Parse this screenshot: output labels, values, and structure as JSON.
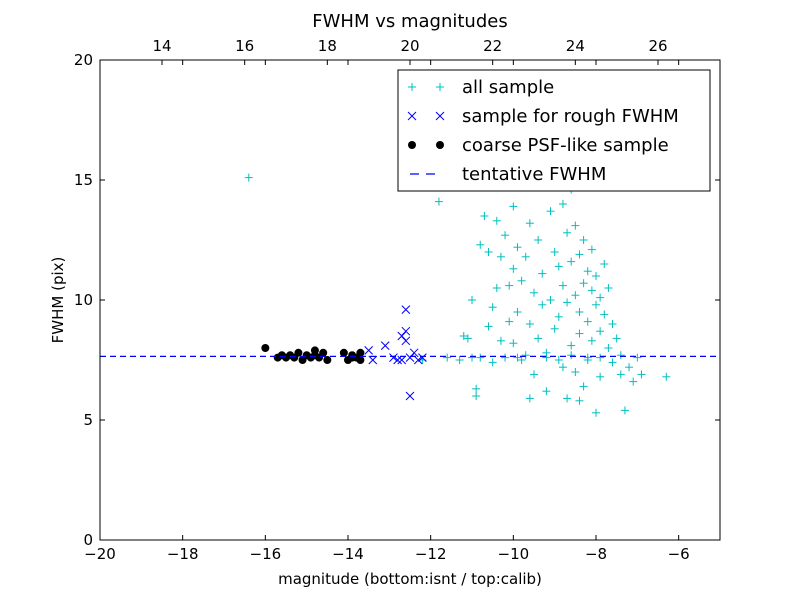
{
  "chart_data": {
    "type": "scatter",
    "title": "FWHM vs magnitudes",
    "xlabel": "magnitude (bottom:isnt / top:calib)",
    "ylabel": "FWHM (pix)",
    "xlim": [
      -20,
      -5
    ],
    "ylim": [
      0,
      20
    ],
    "x_ticks": [
      -20,
      -18,
      -16,
      -14,
      -12,
      -10,
      -8,
      -6
    ],
    "x_tick_labels": [
      "−20",
      "−18",
      "−16",
      "−14",
      "−12",
      "−10",
      "−8",
      "−6"
    ],
    "y_ticks": [
      0,
      5,
      10,
      15,
      20
    ],
    "y_tick_labels": [
      "0",
      "5",
      "10",
      "15",
      "20"
    ],
    "top_xlim": [
      12.5,
      27.5
    ],
    "top_x_ticks": [
      14,
      16,
      18,
      20,
      22,
      24,
      26
    ],
    "top_x_tick_labels": [
      "14",
      "16",
      "18",
      "20",
      "22",
      "24",
      "26"
    ],
    "grid": false,
    "legend_position": "top-right",
    "tentative_fwhm": 7.65,
    "series": [
      {
        "name": "all sample",
        "marker": "plus",
        "color": "#00bfbf",
        "points": [
          [
            -16.4,
            15.1
          ],
          [
            -12.2,
            7.5
          ],
          [
            -11.8,
            14.1
          ],
          [
            -11.6,
            7.6
          ],
          [
            -11.3,
            7.5
          ],
          [
            -11.2,
            8.5
          ],
          [
            -11.1,
            8.4
          ],
          [
            -11.0,
            10.0
          ],
          [
            -11.0,
            7.6
          ],
          [
            -10.9,
            6.3
          ],
          [
            -10.9,
            6.0
          ],
          [
            -10.8,
            12.3
          ],
          [
            -10.8,
            7.6
          ],
          [
            -10.7,
            13.5
          ],
          [
            -10.6,
            8.9
          ],
          [
            -10.6,
            12.0
          ],
          [
            -10.5,
            9.7
          ],
          [
            -10.5,
            7.4
          ],
          [
            -10.4,
            13.3
          ],
          [
            -10.4,
            10.5
          ],
          [
            -10.3,
            11.8
          ],
          [
            -10.3,
            8.3
          ],
          [
            -10.2,
            7.6
          ],
          [
            -10.2,
            12.7
          ],
          [
            -10.1,
            9.1
          ],
          [
            -10.1,
            10.6
          ],
          [
            -10.0,
            13.9
          ],
          [
            -10.0,
            11.3
          ],
          [
            -10.0,
            8.2
          ],
          [
            -9.9,
            12.2
          ],
          [
            -9.9,
            9.5
          ],
          [
            -9.8,
            7.5
          ],
          [
            -9.8,
            10.8
          ],
          [
            -9.7,
            11.8
          ],
          [
            -9.6,
            13.2
          ],
          [
            -9.6,
            9.0
          ],
          [
            -9.5,
            6.9
          ],
          [
            -9.5,
            10.3
          ],
          [
            -9.4,
            12.5
          ],
          [
            -9.4,
            8.4
          ],
          [
            -9.3,
            11.1
          ],
          [
            -9.3,
            9.8
          ],
          [
            -9.2,
            7.8
          ],
          [
            -9.2,
            6.2
          ],
          [
            -9.1,
            13.7
          ],
          [
            -9.1,
            10.0
          ],
          [
            -9.0,
            12.0
          ],
          [
            -9.0,
            8.8
          ],
          [
            -8.9,
            11.4
          ],
          [
            -8.9,
            9.3
          ],
          [
            -8.8,
            7.2
          ],
          [
            -8.8,
            10.6
          ],
          [
            -8.7,
            12.8
          ],
          [
            -8.7,
            9.9
          ],
          [
            -8.6,
            11.6
          ],
          [
            -8.6,
            8.1
          ],
          [
            -8.5,
            10.2
          ],
          [
            -8.5,
            13.1
          ],
          [
            -8.5,
            7.0
          ],
          [
            -8.4,
            9.5
          ],
          [
            -8.4,
            11.9
          ],
          [
            -8.4,
            8.6
          ],
          [
            -8.3,
            12.5
          ],
          [
            -8.3,
            10.7
          ],
          [
            -8.3,
            6.4
          ],
          [
            -8.2,
            11.2
          ],
          [
            -8.2,
            9.1
          ],
          [
            -8.2,
            7.6
          ],
          [
            -8.1,
            10.4
          ],
          [
            -8.1,
            12.1
          ],
          [
            -8.1,
            8.3
          ],
          [
            -8.0,
            9.8
          ],
          [
            -8.0,
            11.0
          ],
          [
            -8.0,
            5.3
          ],
          [
            -7.9,
            10.1
          ],
          [
            -7.9,
            8.7
          ],
          [
            -7.9,
            6.8
          ],
          [
            -7.8,
            9.4
          ],
          [
            -7.8,
            11.5
          ],
          [
            -7.7,
            8.0
          ],
          [
            -7.7,
            10.5
          ],
          [
            -7.6,
            7.4
          ],
          [
            -7.6,
            9.0
          ],
          [
            -7.5,
            8.4
          ],
          [
            -7.4,
            6.9
          ],
          [
            -7.4,
            7.7
          ],
          [
            -7.3,
            5.4
          ],
          [
            -7.2,
            7.2
          ],
          [
            -7.1,
            6.6
          ],
          [
            -7.0,
            7.6
          ],
          [
            -6.9,
            6.9
          ],
          [
            -6.3,
            6.8
          ],
          [
            -9.6,
            5.9
          ],
          [
            -8.7,
            5.9
          ],
          [
            -8.4,
            5.8
          ],
          [
            -9.9,
            7.6
          ],
          [
            -9.7,
            7.7
          ],
          [
            -9.2,
            7.6
          ],
          [
            -8.9,
            7.5
          ],
          [
            -8.6,
            7.7
          ],
          [
            -8.2,
            7.5
          ],
          [
            -7.9,
            7.6
          ],
          [
            -8.5,
            15.9
          ],
          [
            -8.6,
            14.6
          ],
          [
            -8.8,
            14.0
          ]
        ]
      },
      {
        "name": "sample for rough FWHM",
        "marker": "x",
        "color": "#0000ff",
        "points": [
          [
            -13.5,
            7.9
          ],
          [
            -13.4,
            7.5
          ],
          [
            -13.1,
            8.1
          ],
          [
            -12.9,
            7.6
          ],
          [
            -12.8,
            7.5
          ],
          [
            -12.7,
            8.5
          ],
          [
            -12.7,
            7.5
          ],
          [
            -12.6,
            8.7
          ],
          [
            -12.6,
            9.6
          ],
          [
            -12.6,
            8.3
          ],
          [
            -12.5,
            7.6
          ],
          [
            -12.5,
            6.0
          ],
          [
            -12.4,
            7.8
          ],
          [
            -12.3,
            7.5
          ],
          [
            -12.2,
            7.6
          ]
        ]
      },
      {
        "name": "coarse PSF-like sample",
        "marker": "circle",
        "color": "#000000",
        "points": [
          [
            -16.0,
            8.0
          ],
          [
            -15.7,
            7.6
          ],
          [
            -15.6,
            7.7
          ],
          [
            -15.5,
            7.6
          ],
          [
            -15.4,
            7.7
          ],
          [
            -15.3,
            7.6
          ],
          [
            -15.2,
            7.8
          ],
          [
            -15.1,
            7.5
          ],
          [
            -15.0,
            7.7
          ],
          [
            -14.9,
            7.6
          ],
          [
            -14.8,
            7.7
          ],
          [
            -14.8,
            7.9
          ],
          [
            -14.7,
            7.6
          ],
          [
            -14.6,
            7.8
          ],
          [
            -14.5,
            7.5
          ],
          [
            -14.1,
            7.8
          ],
          [
            -14.0,
            7.5
          ],
          [
            -13.9,
            7.6
          ],
          [
            -13.9,
            7.7
          ],
          [
            -13.8,
            7.6
          ],
          [
            -13.7,
            7.8
          ],
          [
            -13.7,
            7.5
          ]
        ]
      },
      {
        "name": "tentative FWHM",
        "marker": "dashed-line",
        "color": "#0000ff",
        "points": []
      }
    ]
  }
}
